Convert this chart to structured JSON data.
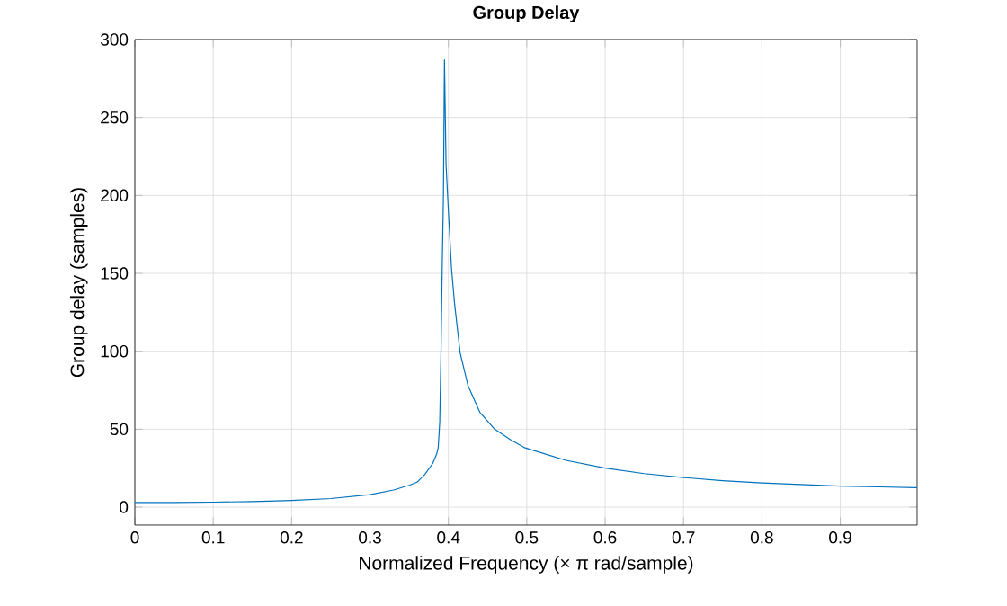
{
  "chart_data": {
    "type": "line",
    "title": "Group Delay",
    "xlabel": "Normalized Frequency  (× π rad/sample)",
    "ylabel": "Group delay (samples)",
    "x": [
      0,
      0.05,
      0.1,
      0.15,
      0.2,
      0.25,
      0.3,
      0.33,
      0.35,
      0.36,
      0.37,
      0.38,
      0.385,
      0.387,
      0.389,
      0.3906,
      0.392,
      0.3937,
      0.395,
      0.397,
      0.4,
      0.404,
      0.408,
      0.415,
      0.425,
      0.44,
      0.459,
      0.48,
      0.498,
      0.55,
      0.6,
      0.65,
      0.7,
      0.75,
      0.8,
      0.85,
      0.9,
      0.95,
      0.998
    ],
    "series": [
      {
        "color": "#0072bd",
        "values": [
          3,
          3,
          3.2,
          3.6,
          4.3,
          5.5,
          8,
          11,
          14,
          16,
          21,
          28,
          34,
          38,
          55,
          100,
          150,
          200,
          287,
          220,
          190,
          153,
          130,
          99,
          78,
          61,
          50,
          43,
          38,
          30,
          25,
          21.5,
          19,
          17,
          15.5,
          14.5,
          13.5,
          13,
          12.5
        ]
      }
    ],
    "xlim": [
      0,
      0.998
    ],
    "ylim": [
      -11.5,
      300
    ],
    "xticks": [
      0,
      0.1,
      0.2,
      0.3,
      0.4,
      0.5,
      0.6,
      0.7,
      0.8,
      0.9
    ],
    "yticks": [
      0,
      50,
      100,
      150,
      200,
      250,
      300
    ],
    "grid": true,
    "line_style": "solid",
    "marker": "none"
  }
}
